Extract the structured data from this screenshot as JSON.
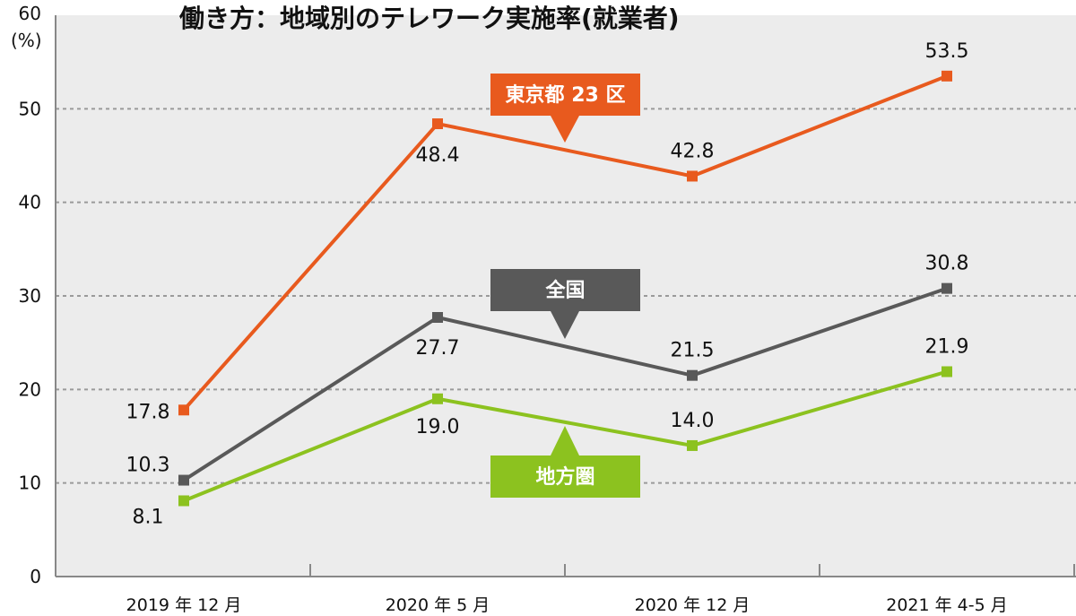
{
  "chart_data": {
    "type": "line",
    "title": "働き方：地域別のテレワーク実施率(就業者)",
    "y_unit": "(%)",
    "ylim": [
      0,
      60
    ],
    "y_ticks": [
      0,
      10,
      20,
      30,
      40,
      50,
      60
    ],
    "grid": true,
    "categories": [
      "2019 年 12 月",
      "2020 年 5 月",
      "2020 年 12 月",
      "2021 年 4-5 月"
    ],
    "series": [
      {
        "name": "東京都 23 区",
        "color": "#e85a1e",
        "values": [
          17.8,
          48.4,
          42.8,
          53.5
        ]
      },
      {
        "name": "全国",
        "color": "#595959",
        "values": [
          10.3,
          27.7,
          21.5,
          30.8
        ]
      },
      {
        "name": "地方圏",
        "color": "#8cc21f",
        "values": [
          8.1,
          19.0,
          14.0,
          21.9
        ]
      }
    ],
    "value_labels": [
      [
        "17.8",
        "48.4",
        "42.8",
        "53.5"
      ],
      [
        "10.3",
        "27.7",
        "21.5",
        "30.8"
      ],
      [
        "8.1",
        "19.0",
        "14.0",
        "21.9"
      ]
    ]
  }
}
